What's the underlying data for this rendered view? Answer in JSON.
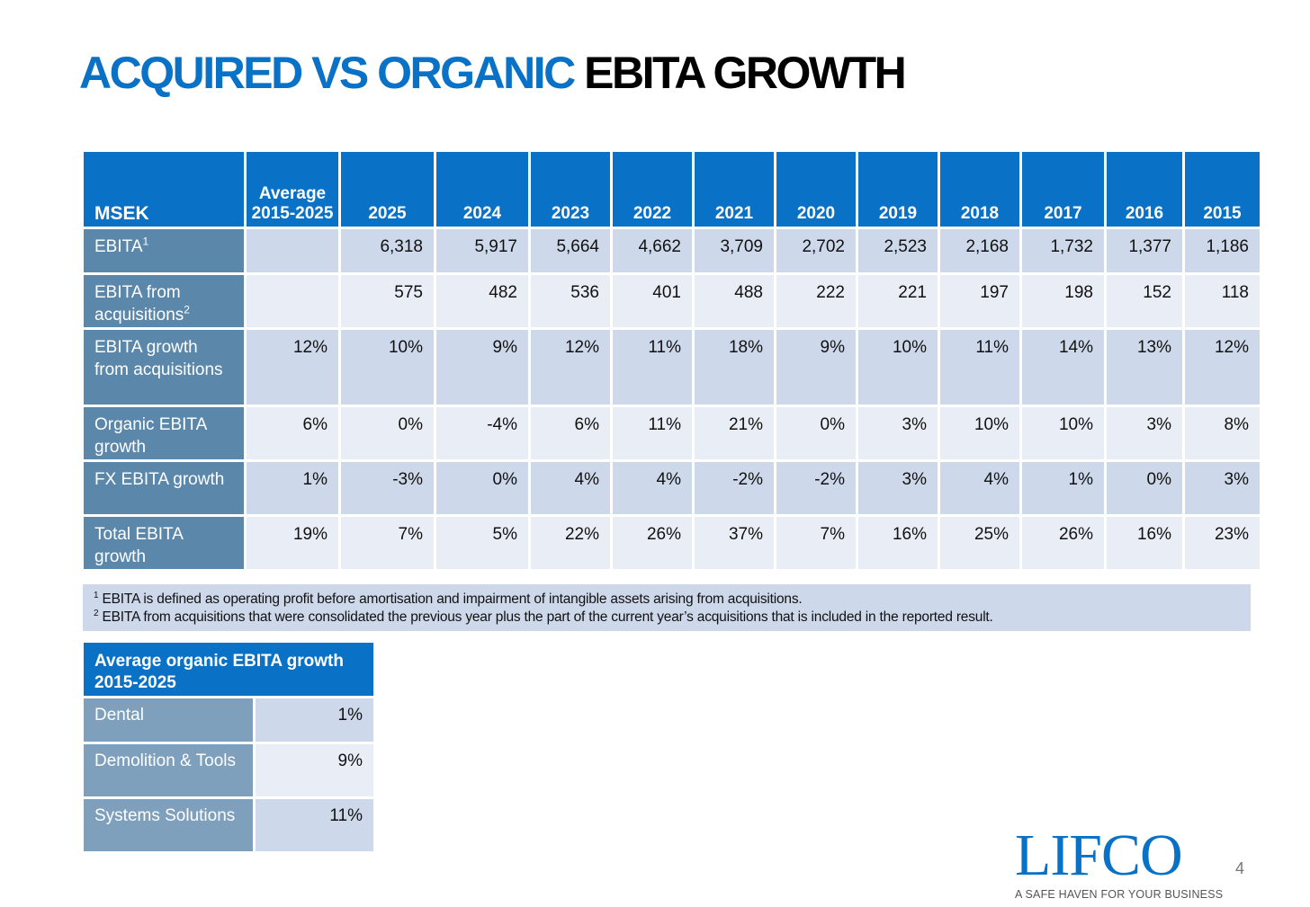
{
  "title": {
    "blue": "ACQUIRED VS ORGANIC",
    "black": "EBITA GROWTH"
  },
  "main_table": {
    "headers": [
      "MSEK",
      "Average 2015-2025",
      "2025",
      "2024",
      "2023",
      "2022",
      "2021",
      "2020",
      "2019",
      "2018",
      "2017",
      "2016",
      "2015"
    ],
    "rows": [
      {
        "label": "EBITA",
        "sup": "1",
        "values": [
          "",
          "6,318",
          "5,917",
          "5,664",
          "4,662",
          "3,709",
          "2,702",
          "2,523",
          "2,168",
          "1,732",
          "1,377",
          "1,186"
        ]
      },
      {
        "label": "EBITA from acquisitions",
        "sup": "2",
        "values": [
          "",
          "575",
          "482",
          "536",
          "401",
          "488",
          "222",
          "221",
          "197",
          "198",
          "152",
          "118"
        ]
      },
      {
        "label": "EBITA growth from acquisitions",
        "sup": "",
        "values": [
          "12%",
          "10%",
          "9%",
          "12%",
          "11%",
          "18%",
          "9%",
          "10%",
          "11%",
          "14%",
          "13%",
          "12%"
        ]
      },
      {
        "label": "Organic EBITA growth",
        "sup": "",
        "values": [
          "6%",
          "0%",
          "-4%",
          "6%",
          "11%",
          "21%",
          "0%",
          "3%",
          "10%",
          "10%",
          "3%",
          "8%"
        ]
      },
      {
        "label": "FX EBITA growth",
        "sup": "",
        "values": [
          "1%",
          "-3%",
          "0%",
          "4%",
          "4%",
          "-2%",
          "-2%",
          "3%",
          "4%",
          "1%",
          "0%",
          "3%"
        ]
      },
      {
        "label": "Total EBITA growth",
        "sup": "",
        "values": [
          "19%",
          "7%",
          "5%",
          "22%",
          "26%",
          "37%",
          "7%",
          "16%",
          "25%",
          "26%",
          "16%",
          "23%"
        ]
      }
    ]
  },
  "footnotes": [
    {
      "mark": "1",
      "text": "EBITA is defined as operating profit before amortisation and impairment of intangible assets arising from acquisitions."
    },
    {
      "mark": "2",
      "text": "EBITA from acquisitions that were consolidated the previous year plus the part of the current year’s acquisitions that is included in the reported result."
    }
  ],
  "segment_table": {
    "header": "Average organic EBITA growth 2015-2025",
    "rows": [
      {
        "label": "Dental",
        "value": "1%"
      },
      {
        "label": "Demolition & Tools",
        "value": "9%"
      },
      {
        "label": "Systems Solutions",
        "value": "11%"
      }
    ]
  },
  "logo": {
    "word": "LIFCO",
    "tagline": "A SAFE HAVEN FOR YOUR BUSINESS"
  },
  "page_number": "4"
}
